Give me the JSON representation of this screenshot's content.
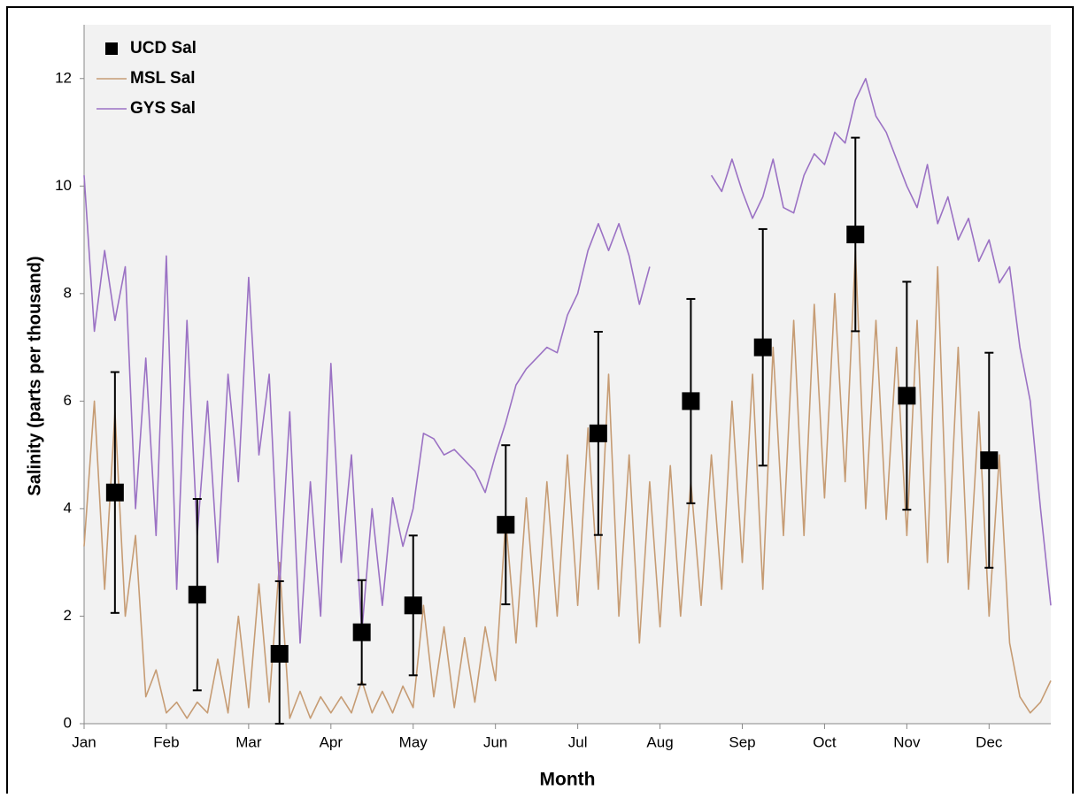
{
  "chart_data": {
    "type": "line",
    "x_label": "Month",
    "y_label": "Salinity (parts per thousand)",
    "categories": [
      "Jan",
      null,
      null,
      null,
      null,
      null,
      null,
      null,
      "Feb",
      null,
      null,
      null,
      null,
      null,
      null,
      null,
      "Mar",
      null,
      null,
      null,
      null,
      null,
      null,
      null,
      "Apr",
      null,
      null,
      null,
      null,
      null,
      null,
      null,
      "May",
      null,
      null,
      null,
      null,
      null,
      null,
      null,
      "Jun",
      null,
      null,
      null,
      null,
      null,
      null,
      null,
      "Jul",
      null,
      null,
      null,
      null,
      null,
      null,
      null,
      "Aug",
      null,
      null,
      null,
      null,
      null,
      null,
      null,
      "Sep",
      null,
      null,
      null,
      null,
      null,
      null,
      null,
      "Oct",
      null,
      null,
      null,
      null,
      null,
      null,
      null,
      "Nov",
      null,
      null,
      null,
      null,
      null,
      null,
      null,
      "Dec",
      null,
      null,
      null,
      null,
      null,
      null
    ],
    "ylim": [
      0,
      13
    ],
    "yticks": [
      0,
      2,
      4,
      6,
      8,
      10,
      12
    ],
    "legend": "top-left",
    "series": [
      {
        "name": "UCD Sal",
        "type": "errorbar",
        "color": "#000000",
        "values": [
          null,
          null,
          null,
          4.3,
          null,
          null,
          null,
          null,
          null,
          null,
          null,
          2.4,
          null,
          null,
          null,
          null,
          null,
          null,
          null,
          1.3,
          null,
          null,
          null,
          null,
          null,
          null,
          null,
          1.7,
          null,
          null,
          null,
          null,
          2.2,
          null,
          null,
          null,
          null,
          null,
          null,
          null,
          null,
          3.7,
          null,
          null,
          null,
          null,
          null,
          null,
          null,
          null,
          5.4,
          null,
          null,
          null,
          null,
          null,
          null,
          null,
          null,
          6.0,
          null,
          null,
          null,
          null,
          null,
          null,
          7.0,
          null,
          null,
          null,
          null,
          null,
          null,
          null,
          null,
          9.1,
          null,
          null,
          null,
          null,
          6.1,
          null,
          null,
          null,
          null,
          null,
          null,
          null,
          4.9,
          null,
          null,
          null,
          null,
          null,
          null
        ],
        "errors": [
          null,
          null,
          null,
          2.24,
          null,
          null,
          null,
          null,
          null,
          null,
          null,
          1.78,
          null,
          null,
          null,
          null,
          null,
          null,
          null,
          1.35,
          null,
          null,
          null,
          null,
          null,
          null,
          null,
          0.97,
          null,
          null,
          null,
          null,
          1.3,
          null,
          null,
          null,
          null,
          null,
          null,
          null,
          null,
          1.48,
          null,
          null,
          null,
          null,
          null,
          null,
          null,
          null,
          1.89,
          null,
          null,
          null,
          null,
          null,
          null,
          null,
          null,
          1.9,
          null,
          null,
          null,
          null,
          null,
          null,
          2.2,
          null,
          null,
          null,
          null,
          null,
          null,
          null,
          null,
          1.8,
          null,
          null,
          null,
          null,
          2.12,
          null,
          null,
          null,
          null,
          null,
          null,
          null,
          2.0,
          null,
          null,
          null,
          null,
          null,
          null
        ]
      },
      {
        "name": "MSL Sal",
        "type": "line",
        "color": "#c69c74",
        "values": [
          3.3,
          6.0,
          2.5,
          5.8,
          2.0,
          3.5,
          0.5,
          1.0,
          0.2,
          0.4,
          0.1,
          0.4,
          0.2,
          1.2,
          0.2,
          2.0,
          0.3,
          2.6,
          0.4,
          3.0,
          0.1,
          0.6,
          0.1,
          0.5,
          0.2,
          0.5,
          0.2,
          0.8,
          0.2,
          0.6,
          0.2,
          0.7,
          0.3,
          2.2,
          0.5,
          1.8,
          0.3,
          1.6,
          0.4,
          1.8,
          0.8,
          3.8,
          1.5,
          4.2,
          1.8,
          4.5,
          2.0,
          5.0,
          2.2,
          5.5,
          2.5,
          6.5,
          2.0,
          5.0,
          1.5,
          4.5,
          1.8,
          4.8,
          2.0,
          4.5,
          2.2,
          5.0,
          2.5,
          6.0,
          3.0,
          6.5,
          2.5,
          7.0,
          3.5,
          7.5,
          3.5,
          7.8,
          4.2,
          8.0,
          4.5,
          8.8,
          4.0,
          7.5,
          3.8,
          7.0,
          3.5,
          7.5,
          3.0,
          8.5,
          3.0,
          7.0,
          2.5,
          5.8,
          2.0,
          5.0,
          1.5,
          0.5,
          0.2,
          0.4,
          0.8
        ]
      },
      {
        "name": "GYS Sal",
        "type": "line",
        "color": "#9b72c4",
        "values": [
          10.2,
          7.3,
          8.8,
          7.5,
          8.5,
          4.0,
          6.8,
          3.5,
          8.7,
          2.5,
          7.5,
          3.5,
          6.0,
          3.0,
          6.5,
          4.5,
          8.3,
          5.0,
          6.5,
          2.5,
          5.8,
          1.5,
          4.5,
          2.0,
          6.7,
          3.0,
          5.0,
          1.7,
          4.0,
          2.2,
          4.2,
          3.3,
          4.0,
          5.4,
          5.3,
          5.0,
          5.1,
          4.9,
          4.7,
          4.3,
          5.0,
          5.6,
          6.3,
          6.6,
          6.8,
          7.0,
          6.9,
          7.6,
          8.0,
          8.8,
          9.3,
          8.8,
          9.3,
          8.7,
          7.8,
          8.5,
          null,
          null,
          null,
          null,
          null,
          10.2,
          9.9,
          10.5,
          9.9,
          9.4,
          9.8,
          10.5,
          9.6,
          9.5,
          10.2,
          10.6,
          10.4,
          11.0,
          10.8,
          11.6,
          12.0,
          11.3,
          11.0,
          10.5,
          10.0,
          9.6,
          10.4,
          9.3,
          9.8,
          9.0,
          9.4,
          8.6,
          9.0,
          8.2,
          8.5,
          7.0,
          6.0,
          4.0,
          2.2
        ]
      }
    ]
  }
}
